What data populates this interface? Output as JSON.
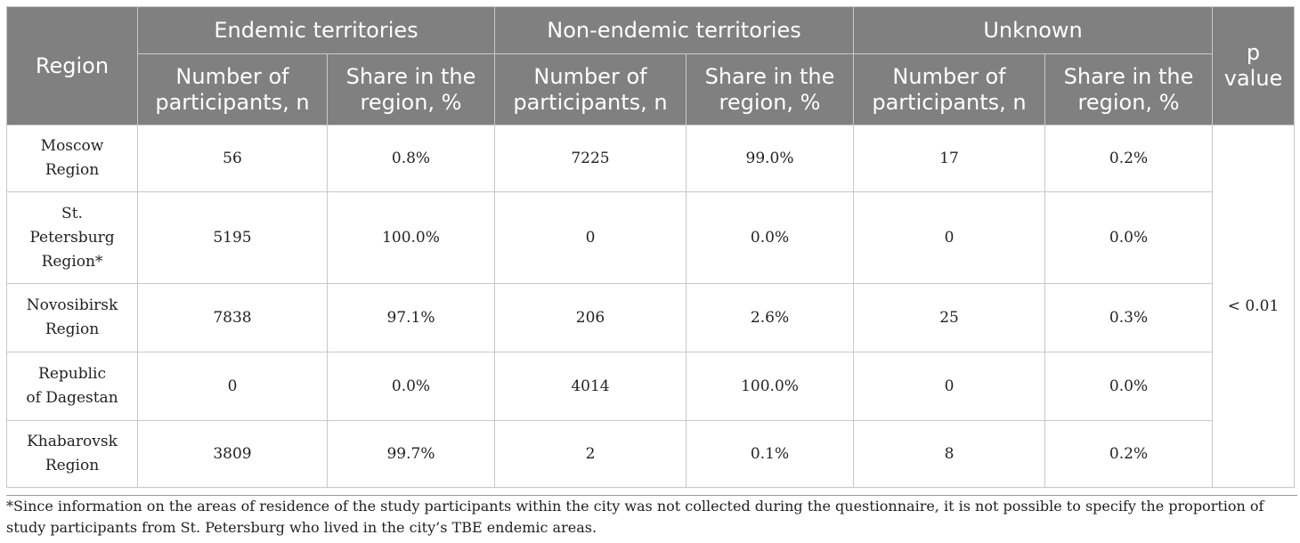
{
  "table": {
    "header": {
      "region": "Region",
      "groups": [
        "Endemic territories",
        "Non-endemic territories",
        "Unknown"
      ],
      "p_value": [
        "p",
        "value"
      ],
      "sub": {
        "number": [
          "Number of",
          "participants, n"
        ],
        "share": [
          "Share in the",
          "region, %"
        ]
      }
    },
    "rows": [
      {
        "region": [
          "Moscow",
          "Region"
        ],
        "values": [
          "56",
          "0.8%",
          "7225",
          "99.0%",
          "17",
          "0.2%"
        ]
      },
      {
        "region": [
          "St.",
          "Petersburg",
          "Region*"
        ],
        "values": [
          "5195",
          "100.0%",
          "0",
          "0.0%",
          "0",
          "0.0%"
        ]
      },
      {
        "region": [
          "Novosibirsk",
          "Region"
        ],
        "values": [
          "7838",
          "97.1%",
          "206",
          "2.6%",
          "25",
          "0.3%"
        ]
      },
      {
        "region": [
          "Republic",
          "of Dagestan"
        ],
        "values": [
          "0",
          "0.0%",
          "4014",
          "100.0%",
          "0",
          "0.0%"
        ]
      },
      {
        "region": [
          "Khabarovsk",
          "Region"
        ],
        "values": [
          "3809",
          "99.7%",
          "2",
          "0.1%",
          "8",
          "0.2%"
        ]
      }
    ],
    "p_value": "< 0.01"
  },
  "footnote": "*Since information on the areas of residence of the study participants within the city was not collected during the questionnaire, it is not possible to specify the proportion of study participants from St. Petersburg who lived in the city’s TBE endemic areas."
}
